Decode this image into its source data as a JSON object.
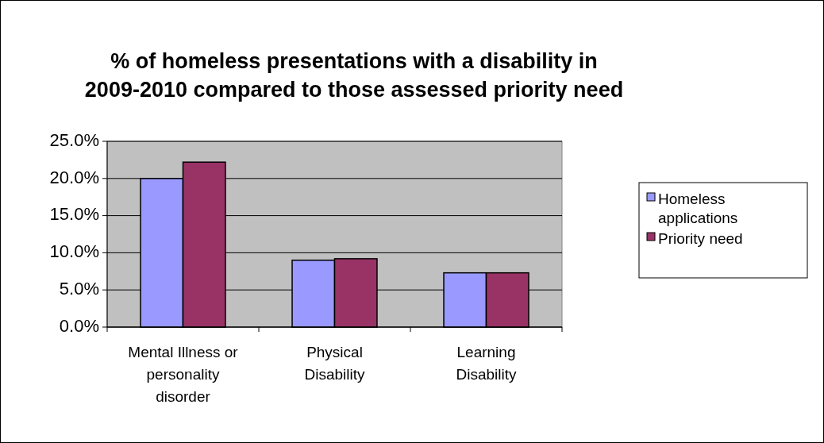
{
  "chart_data": {
    "type": "bar",
    "title": "% of homeless presentations with a disability in 2009-2010 compared to those assessed priority need",
    "categories": [
      "Mental Illness or personality disorder",
      "Physical Disability",
      "Learning Disability"
    ],
    "series": [
      {
        "name": "Homeless applications",
        "color": "#9999ff",
        "values": [
          20.0,
          9.0,
          7.3
        ]
      },
      {
        "name": "Priority need",
        "color": "#993366",
        "values": [
          22.2,
          9.2,
          7.3
        ]
      }
    ],
    "ylim": [
      0,
      25
    ],
    "yticks": [
      {
        "value": 0,
        "label": "0.0%"
      },
      {
        "value": 5,
        "label": "5.0%"
      },
      {
        "value": 10,
        "label": "10.0%"
      },
      {
        "value": 15,
        "label": "15.0%"
      },
      {
        "value": 20,
        "label": "20.0%"
      },
      {
        "value": 25,
        "label": "25.0%"
      }
    ],
    "grid": "y",
    "legend": "right"
  }
}
